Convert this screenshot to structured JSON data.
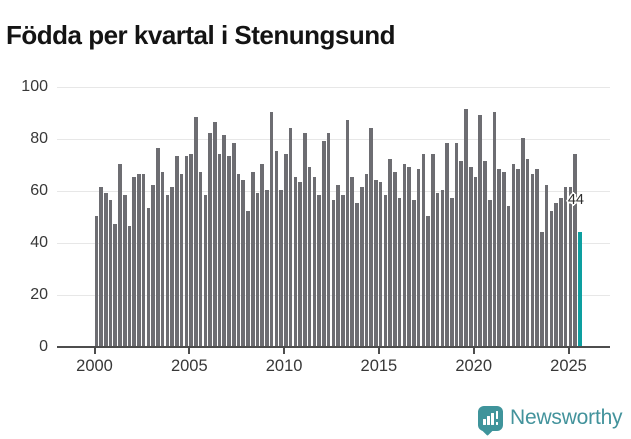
{
  "page": {
    "title": "Födda per kvartal i Stenungsund"
  },
  "chart_data": {
    "type": "bar",
    "title": "Födda per kvartal i Stenungsund",
    "x_start_year": 2000,
    "periods_per_year": 4,
    "x_tick_labels": [
      "2000",
      "2005",
      "2010",
      "2015",
      "2020",
      "2025"
    ],
    "y_ticks": [
      0,
      20,
      40,
      60,
      80,
      100
    ],
    "ylim": [
      0,
      100
    ],
    "grid": "horizontal",
    "legend": "none",
    "values": [
      50,
      61,
      59,
      56,
      47,
      70,
      58,
      46,
      65,
      66,
      66,
      53,
      62,
      76,
      67,
      58,
      61,
      73,
      66,
      73,
      74,
      88,
      67,
      58,
      82,
      86,
      74,
      81,
      73,
      78,
      66,
      64,
      52,
      67,
      59,
      70,
      60,
      90,
      75,
      60,
      74,
      84,
      65,
      63,
      82,
      69,
      65,
      58,
      79,
      82,
      56,
      62,
      58,
      87,
      65,
      55,
      61,
      66,
      84,
      64,
      63,
      58,
      72,
      67,
      57,
      70,
      69,
      56,
      68,
      74,
      50,
      74,
      59,
      60,
      78,
      57,
      78,
      71,
      91,
      69,
      65,
      89,
      71,
      56,
      90,
      68,
      67,
      54,
      70,
      68,
      80,
      72,
      66,
      68,
      44,
      62,
      52,
      55,
      57,
      61,
      61,
      74,
      44
    ],
    "highlight_last_bar": true,
    "last_bar_label": "44",
    "bar_color": "#6d6d72",
    "highlight_color": "#0d9fa0"
  },
  "branding": {
    "name": "Newsworthy",
    "brand_color": "#43939c",
    "icon_color": "#3f949b"
  }
}
